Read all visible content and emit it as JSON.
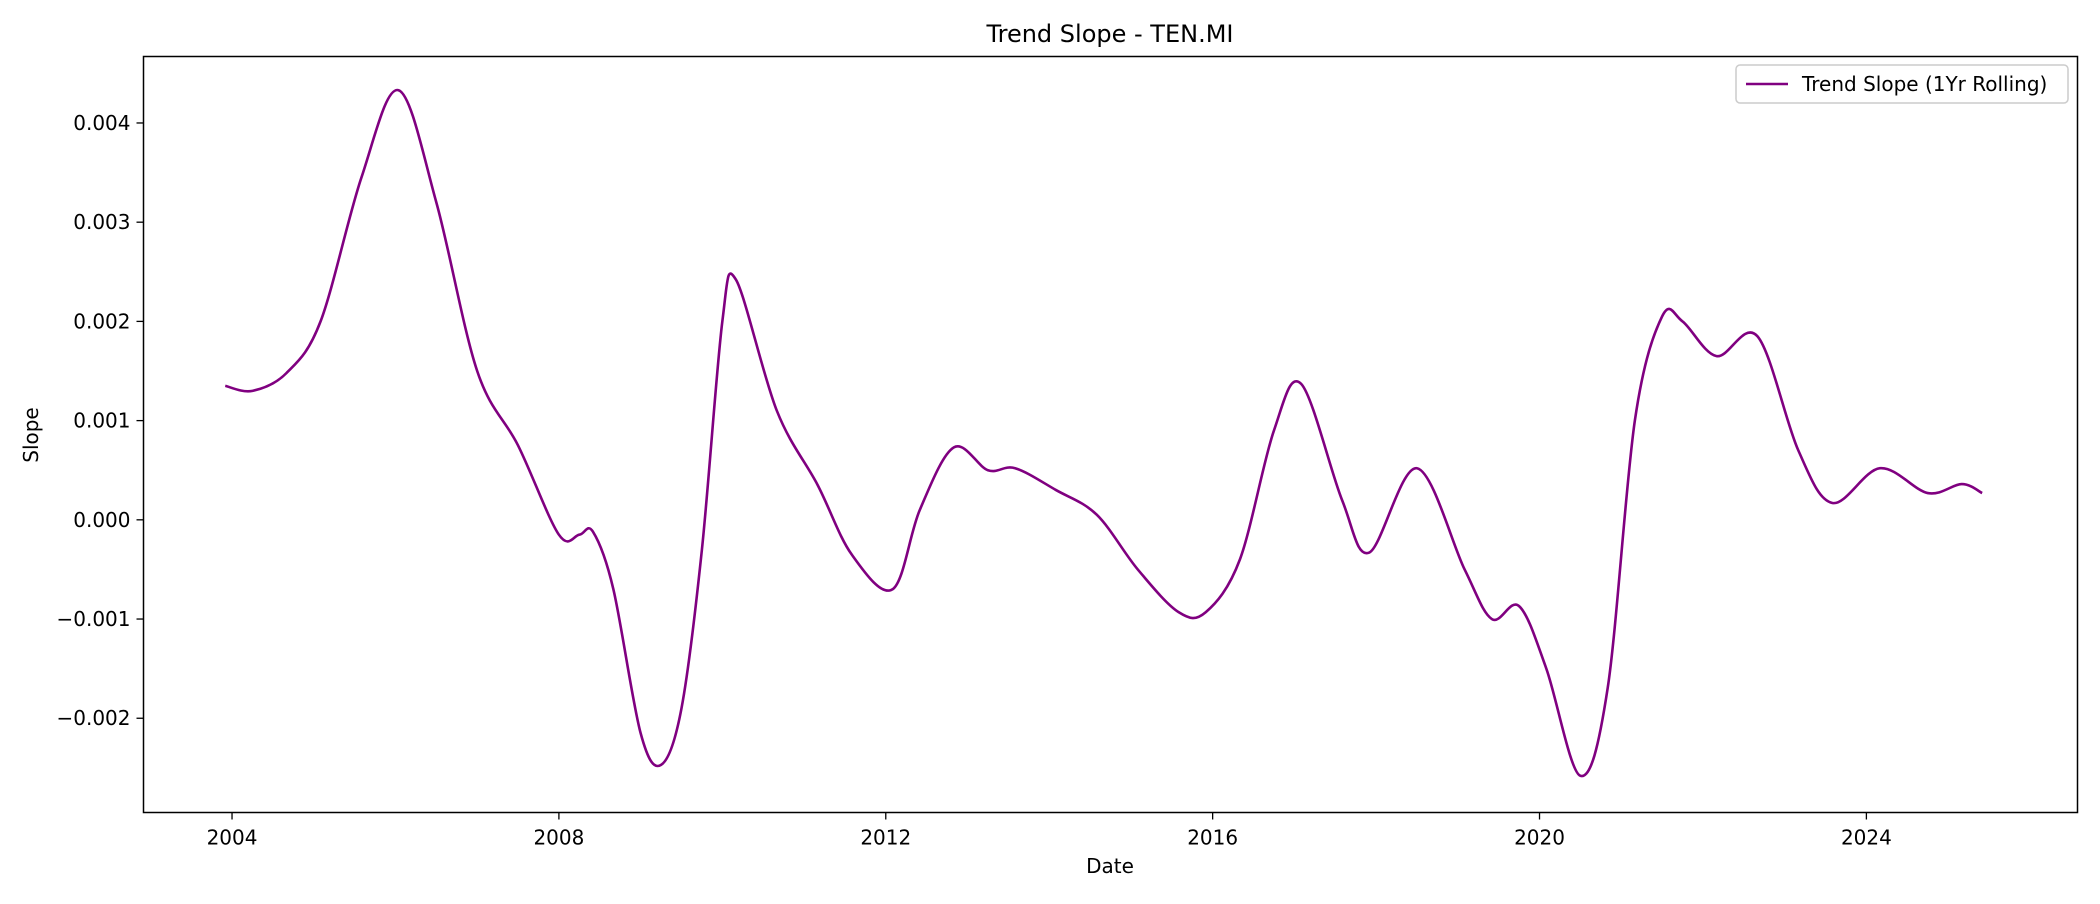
{
  "chart_data": {
    "type": "line",
    "title": "Trend Slope - TEN.MI",
    "xlabel": "Date",
    "ylabel": "Slope",
    "x_ticks": [
      "2004",
      "2008",
      "2012",
      "2016",
      "2020",
      "2024"
    ],
    "y_ticks": [
      "0.004",
      "0.003",
      "0.002",
      "0.001",
      "0.000",
      "−0.001",
      "−0.002"
    ],
    "xlim": [
      "2002-12-01",
      "2026-08-01"
    ],
    "ylim": [
      -0.00295,
      0.00467
    ],
    "grid": false,
    "legend_position": "top-right",
    "series": [
      {
        "name": "Trend Slope (1Yr Rolling)",
        "color": "#800080",
        "points": [
          [
            "2003-12-01",
            0.00135
          ],
          [
            "2004-04-01",
            0.0013
          ],
          [
            "2004-09-01",
            0.00148
          ],
          [
            "2005-02-01",
            0.002
          ],
          [
            "2005-08-01",
            0.00345
          ],
          [
            "2006-01-15",
            0.00433
          ],
          [
            "2006-07-01",
            0.0032
          ],
          [
            "2007-01-01",
            0.0015
          ],
          [
            "2007-07-01",
            0.00075
          ],
          [
            "2008-01-01",
            -0.00015
          ],
          [
            "2008-04-01",
            -0.00015
          ],
          [
            "2008-06-01",
            -0.00012
          ],
          [
            "2008-09-01",
            -0.0007
          ],
          [
            "2009-01-01",
            -0.00215
          ],
          [
            "2009-04-01",
            -0.00247
          ],
          [
            "2009-07-01",
            -0.0019
          ],
          [
            "2009-10-01",
            -0.0003
          ],
          [
            "2010-01-01",
            0.002
          ],
          [
            "2010-03-01",
            0.00242
          ],
          [
            "2010-09-01",
            0.0011
          ],
          [
            "2011-03-01",
            0.00035
          ],
          [
            "2011-08-01",
            -0.00035
          ],
          [
            "2012-02-01",
            -0.0007
          ],
          [
            "2012-06-01",
            0.0001
          ],
          [
            "2012-11-01",
            0.00073
          ],
          [
            "2013-04-01",
            0.0005
          ],
          [
            "2013-08-01",
            0.00052
          ],
          [
            "2014-02-01",
            0.0003
          ],
          [
            "2014-08-01",
            5e-05
          ],
          [
            "2015-02-01",
            -0.0005
          ],
          [
            "2015-08-01",
            -0.00093
          ],
          [
            "2015-12-01",
            -0.00093
          ],
          [
            "2016-05-01",
            -0.0004
          ],
          [
            "2016-10-01",
            0.0009
          ],
          [
            "2017-02-01",
            0.00137
          ],
          [
            "2017-08-01",
            0.0002
          ],
          [
            "2017-12-01",
            -0.00033
          ],
          [
            "2018-07-01",
            0.00052
          ],
          [
            "2019-02-01",
            -0.0005
          ],
          [
            "2019-06-01",
            -0.001
          ],
          [
            "2019-10-01",
            -0.00087
          ],
          [
            "2020-02-01",
            -0.0015
          ],
          [
            "2020-07-01",
            -0.00258
          ],
          [
            "2020-11-01",
            -0.0017
          ],
          [
            "2021-03-01",
            0.001
          ],
          [
            "2021-07-01",
            0.00205
          ],
          [
            "2021-10-01",
            0.002
          ],
          [
            "2022-03-01",
            0.00165
          ],
          [
            "2022-09-01",
            0.00185
          ],
          [
            "2023-03-01",
            0.0007
          ],
          [
            "2023-08-01",
            0.00017
          ],
          [
            "2024-03-01",
            0.00052
          ],
          [
            "2024-10-01",
            0.00027
          ],
          [
            "2025-03-01",
            0.00036
          ],
          [
            "2025-06-01",
            0.00027
          ]
        ]
      }
    ]
  }
}
